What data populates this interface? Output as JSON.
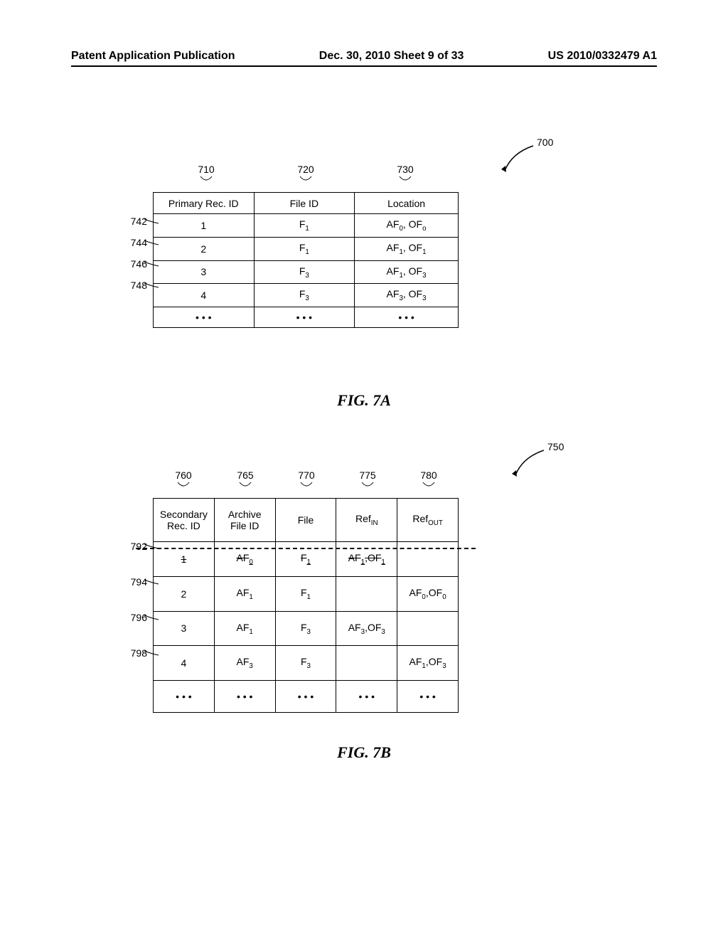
{
  "header": {
    "left": "Patent Application Publication",
    "center": "Dec. 30, 2010  Sheet 9 of 33",
    "right": "US 2010/0332479 A1"
  },
  "figA": {
    "ref": "700",
    "caption": "FIG. 7A",
    "col_refs": [
      "710",
      "720",
      "730"
    ],
    "columns": [
      "Primary Rec. ID",
      "File ID",
      "Location"
    ],
    "row_refs": [
      "742",
      "744",
      "746",
      "748"
    ],
    "rows": [
      [
        "1",
        "F<sub>1</sub>",
        "AF<sub>0</sub>, OF<sub>o</sub>"
      ],
      [
        "2",
        "F<sub>1</sub>",
        "AF<sub>1</sub>, OF<sub>1</sub>"
      ],
      [
        "3",
        "F<sub>3</sub>",
        "AF<sub>1</sub>, OF<sub>3</sub>"
      ],
      [
        "4",
        "F<sub>3</sub>",
        "AF<sub>3</sub>, OF<sub>3</sub>"
      ]
    ],
    "ellipsis": [
      "• • •",
      "• • •",
      "• • •"
    ]
  },
  "figB": {
    "ref": "750",
    "caption": "FIG. 7B",
    "col_refs": [
      "760",
      "765",
      "770",
      "775",
      "780"
    ],
    "columns": [
      "Secondary<br>Rec. ID",
      "Archive<br>File ID",
      "File",
      "Ref<sub>IN</sub>",
      "Ref<sub>OUT</sub>"
    ],
    "row_refs": [
      "792",
      "794",
      "796",
      "798"
    ],
    "rows": [
      [
        "1",
        "AF<sub>0</sub>",
        "F<sub>1</sub>",
        "AF<sub>1</sub>,OF<sub>1</sub>",
        ""
      ],
      [
        "2",
        "AF<sub>1</sub>",
        "F<sub>1</sub>",
        "",
        "AF<sub>0</sub>,OF<sub>0</sub>"
      ],
      [
        "3",
        "AF<sub>1</sub>",
        "F<sub>3</sub>",
        "AF<sub>3</sub>,OF<sub>3</sub>",
        ""
      ],
      [
        "4",
        "AF<sub>3</sub>",
        "F<sub>3</sub>",
        "",
        "AF<sub>1</sub>,OF<sub>3</sub>"
      ]
    ],
    "ellipsis": [
      "• • •",
      "• • •",
      "• • •",
      "• • •",
      "• • •"
    ]
  }
}
